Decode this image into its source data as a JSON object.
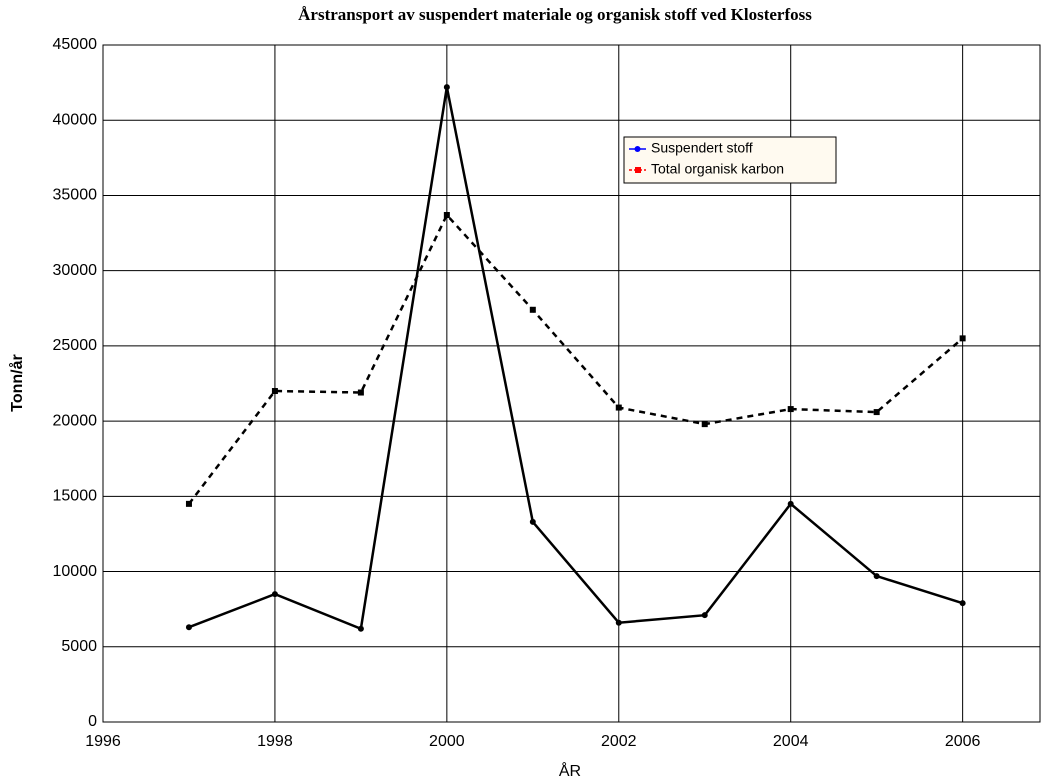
{
  "chart_data": {
    "type": "line",
    "title": "Årstransport av suspendert materiale og organisk stoff ved Klosterfoss",
    "xlabel": "ÅR",
    "ylabel": "Tonn/år",
    "x": [
      1997,
      1998,
      1999,
      2000,
      2001,
      2002,
      2003,
      2004,
      2005,
      2006
    ],
    "series": [
      {
        "name": "Suspendert stoff",
        "color": "#000000",
        "legend_color": "#0000ff",
        "marker": "circle",
        "dash": false,
        "values": [
          6300,
          8500,
          6200,
          42200,
          13300,
          6600,
          7100,
          14500,
          9700,
          7900
        ]
      },
      {
        "name": "Total organisk karbon",
        "color": "#000000",
        "legend_color": "#ff0000",
        "marker": "square",
        "dash": true,
        "values": [
          14500,
          22000,
          21900,
          33700,
          27400,
          20900,
          19800,
          20800,
          20600,
          25500
        ]
      }
    ],
    "xlim": [
      1996,
      2006.9
    ],
    "xticks": [
      1996,
      1998,
      2000,
      2002,
      2004,
      2006
    ],
    "ylim": [
      0,
      45000
    ],
    "yticks": [
      0,
      5000,
      10000,
      15000,
      20000,
      25000,
      30000,
      35000,
      40000,
      45000
    ],
    "grid": true,
    "legend": "upper right"
  }
}
